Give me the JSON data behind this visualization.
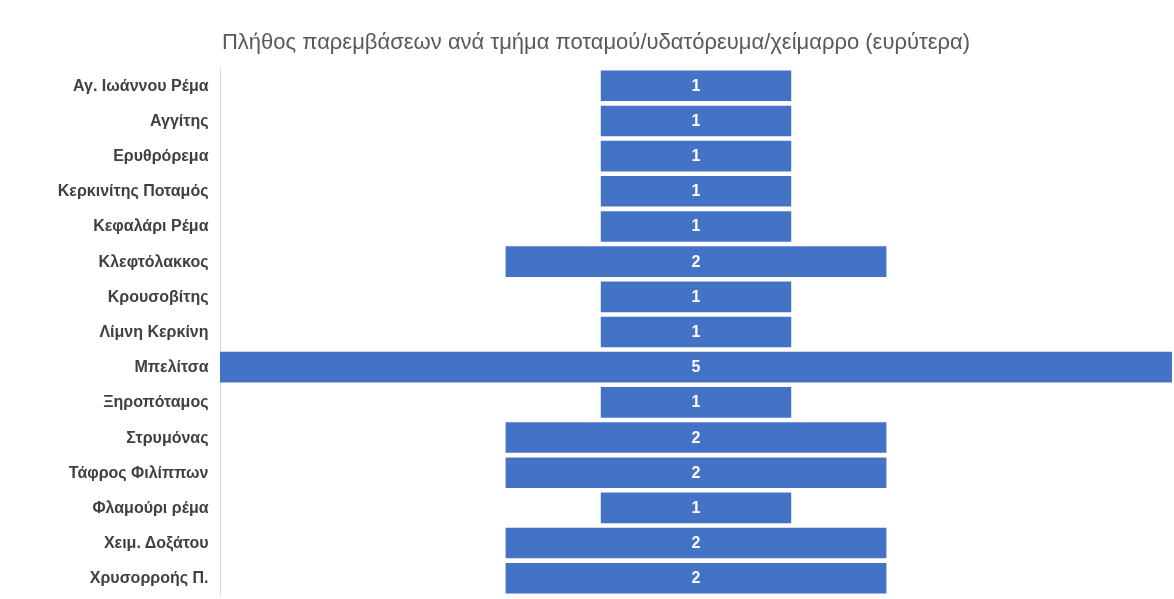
{
  "chart_data": {
    "type": "other",
    "title": "Πλήθος παρεμβάσεων ανά τμήμα ποταμού/υδατόρευμα/χείμαρρο (ευρύτερα)",
    "categories": [
      "Αγ. Ιωάννου Ρέμα",
      "Αγγίτης",
      "Ερυθρόρεμα",
      "Κερκινίτης Ποταμός",
      "Κεφαλάρι Ρέμα",
      "Κλεφτόλακκος",
      "Κρουσοβίτης",
      "Λίμνη Κερκίνη",
      "Μπελίτσα",
      "Ξηροπόταμος",
      "Στρυμόνας",
      "Τάφρος Φιλίππων",
      "Φλαμούρι ρέμα",
      "Χειμ. Δοξάτου",
      "Χρυσορροής Π."
    ],
    "values": [
      1,
      1,
      1,
      1,
      1,
      2,
      1,
      1,
      5,
      1,
      2,
      2,
      1,
      2,
      2
    ],
    "color": "#4472c4",
    "data_labels": true
  }
}
